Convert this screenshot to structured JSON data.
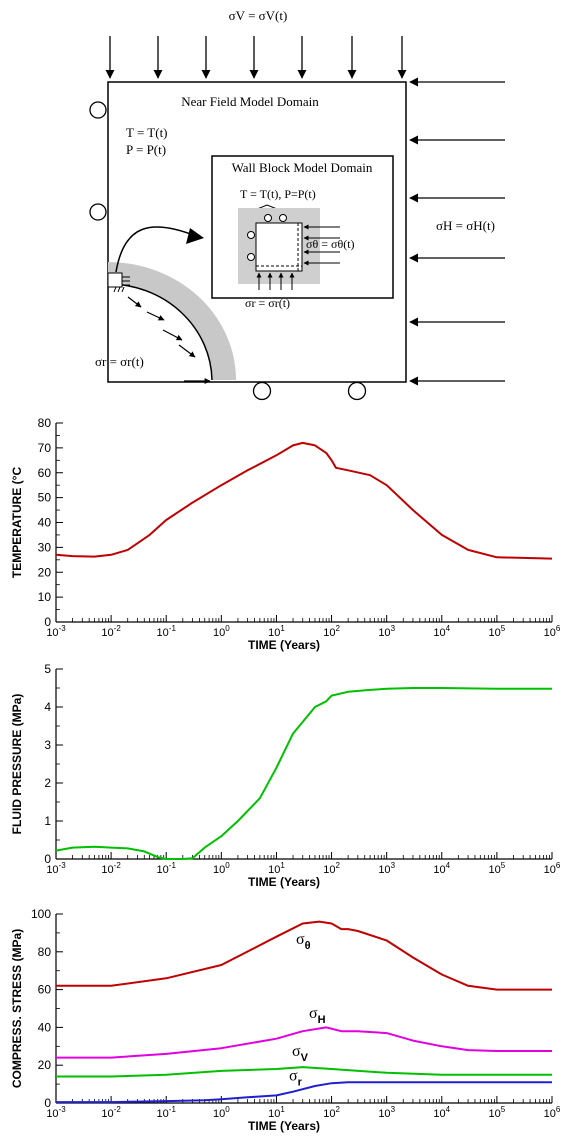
{
  "diagram": {
    "sigma_v_label": "σV = σV(t)",
    "near_field_title": "Near Field Model Domain",
    "near_field_T": "T = T(t)",
    "near_field_P": "P = P(t)",
    "wall_block_title": "Wall Block Model Domain",
    "wall_block_TP": "T = T(t), P=P(t)",
    "sigma_theta_label": "σθ = σθ(t)",
    "sigma_r_inner_label": "σr = σr(t)",
    "sigma_h_label": "σH = σH(t)",
    "sigma_r_outer_label": "σr = σr(t)"
  },
  "chart_data": [
    {
      "type": "line",
      "xscale": "log",
      "xlim": [
        0.001,
        1000000
      ],
      "ylim": [
        0,
        80
      ],
      "xticks": [
        "10-3",
        "10-2",
        "10-1",
        "100",
        "101",
        "102",
        "103",
        "104",
        "105",
        "106"
      ],
      "yticks": [
        "0",
        "10",
        "20",
        "30",
        "40",
        "50",
        "60",
        "70",
        "80"
      ],
      "xlabel": "TIME (Years)",
      "ylabel": "TEMPERATURE (°C",
      "series": [
        {
          "color": "#c00000",
          "x": [
            0.001,
            0.002,
            0.005,
            0.01,
            0.02,
            0.05,
            0.1,
            0.3,
            1,
            3,
            10,
            20,
            30,
            50,
            80,
            100,
            120,
            200,
            500,
            1000,
            3000,
            10000,
            30000,
            100000,
            1000000
          ],
          "y": [
            27,
            26.5,
            26.3,
            27,
            29,
            35,
            41,
            48,
            55,
            61,
            67,
            71,
            72,
            71,
            68,
            65,
            62,
            61,
            59,
            55,
            45,
            35,
            29,
            26,
            25.5
          ]
        }
      ]
    },
    {
      "type": "line",
      "xscale": "log",
      "xlim": [
        0.001,
        1000000
      ],
      "ylim": [
        0,
        5
      ],
      "xticks": [
        "10-3",
        "10-2",
        "10-1",
        "100",
        "101",
        "102",
        "103",
        "104",
        "105",
        "106"
      ],
      "yticks": [
        "0",
        "1",
        "2",
        "3",
        "4",
        "5"
      ],
      "xlabel": "TIME (Years)",
      "ylabel": "FLUID PRESSURE (MPa)",
      "series": [
        {
          "color": "#00c000",
          "x": [
            0.001,
            0.002,
            0.005,
            0.01,
            0.02,
            0.04,
            0.07,
            0.1,
            0.2,
            0.3,
            0.5,
            1,
            2,
            5,
            10,
            20,
            50,
            80,
            100,
            200,
            500,
            1000,
            3000,
            10000,
            100000,
            1000000
          ],
          "y": [
            0.22,
            0.3,
            0.32,
            0.3,
            0.28,
            0.2,
            0.05,
            0,
            0,
            0.02,
            0.3,
            0.6,
            1.0,
            1.6,
            2.4,
            3.3,
            4.0,
            4.15,
            4.3,
            4.4,
            4.45,
            4.48,
            4.5,
            4.5,
            4.48,
            4.48
          ]
        }
      ]
    },
    {
      "type": "line",
      "xscale": "log",
      "xlim": [
        0.001,
        1000000
      ],
      "ylim": [
        0,
        100
      ],
      "xticks": [
        "10-3",
        "10-2",
        "10-1",
        "100",
        "101",
        "102",
        "103",
        "104",
        "105",
        "106"
      ],
      "yticks": [
        "0",
        "20",
        "40",
        "60",
        "80",
        "100"
      ],
      "xlabel": "TIME (Years)",
      "ylabel": "COMPRESS. STRESS (MPa)",
      "annotations": [
        {
          "text": "θ",
          "series": 0
        },
        {
          "text": "H",
          "series": 1
        },
        {
          "text": "V",
          "series": 2
        },
        {
          "text": "r",
          "series": 3
        }
      ],
      "series": [
        {
          "color": "#c00000",
          "x": [
            0.001,
            0.01,
            0.1,
            1,
            10,
            30,
            60,
            100,
            150,
            200,
            300,
            1000,
            3000,
            10000,
            30000,
            100000,
            1000000
          ],
          "y": [
            62,
            62,
            66,
            73,
            88,
            95,
            96,
            95,
            92,
            92,
            91,
            86,
            77,
            68,
            62,
            60,
            60
          ]
        },
        {
          "color": "#e000e0",
          "x": [
            0.001,
            0.01,
            0.1,
            1,
            10,
            30,
            80,
            150,
            300,
            1000,
            3000,
            10000,
            30000,
            100000,
            1000000
          ],
          "y": [
            24,
            24,
            26,
            29,
            34,
            38,
            40,
            38,
            38,
            37,
            33,
            30,
            28,
            27.5,
            27.5
          ]
        },
        {
          "color": "#00c000",
          "x": [
            0.001,
            0.01,
            0.1,
            1,
            10,
            30,
            100,
            1000,
            10000,
            100000,
            1000000
          ],
          "y": [
            14,
            14,
            15,
            17,
            18,
            19,
            18,
            16,
            15,
            15,
            15
          ]
        },
        {
          "color": "#2020d0",
          "x": [
            0.001,
            0.01,
            0.1,
            0.5,
            1,
            3,
            10,
            20,
            50,
            100,
            200,
            1000,
            10000,
            100000,
            1000000
          ],
          "y": [
            0.5,
            0.5,
            1,
            1.5,
            2,
            3,
            4,
            6,
            9,
            10.5,
            11,
            11,
            11,
            11,
            11
          ]
        }
      ]
    }
  ]
}
